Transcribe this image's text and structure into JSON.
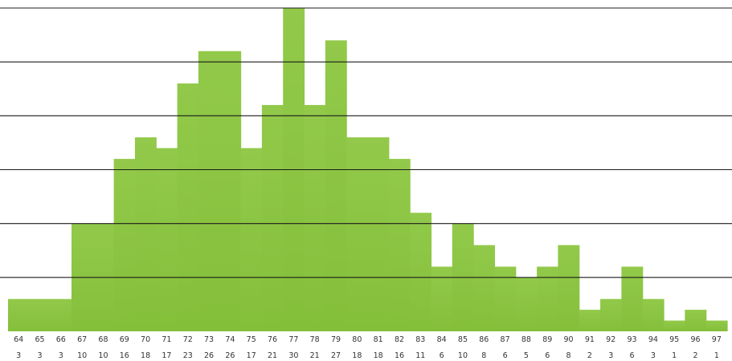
{
  "chart_data": {
    "type": "bar",
    "title": "",
    "xlabel": "",
    "ylabel": "",
    "grid": true,
    "bar_color": "#8cc63f",
    "bar_color_dark": "#7fba34",
    "categories": [
      "64",
      "65",
      "66",
      "67",
      "68",
      "69",
      "70",
      "71",
      "72",
      "73",
      "74",
      "75",
      "76",
      "77",
      "78",
      "79",
      "80",
      "81",
      "82",
      "83",
      "84",
      "85",
      "86",
      "87",
      "88",
      "89",
      "90",
      "91",
      "92",
      "93",
      "94",
      "95",
      "96",
      "97"
    ],
    "count_labels": [
      "3",
      "3",
      "3",
      "10",
      "10",
      "16",
      "18",
      "17",
      "23",
      "26",
      "26",
      "17",
      "21",
      "30",
      "21",
      "27",
      "18",
      "18",
      "16",
      "11",
      "6",
      "10",
      "8",
      "6",
      "5",
      "6",
      "8",
      "2",
      "3",
      "6",
      "3",
      "1",
      "2",
      "1"
    ],
    "values": [
      3,
      3,
      3,
      10,
      10,
      16,
      18,
      17,
      23,
      26,
      26,
      17,
      21,
      30,
      21,
      27,
      18,
      18,
      16,
      11,
      6,
      10,
      8,
      6,
      5,
      6,
      8,
      2,
      3,
      6,
      3,
      1,
      2,
      1
    ],
    "ylim": [
      0,
      30
    ]
  }
}
